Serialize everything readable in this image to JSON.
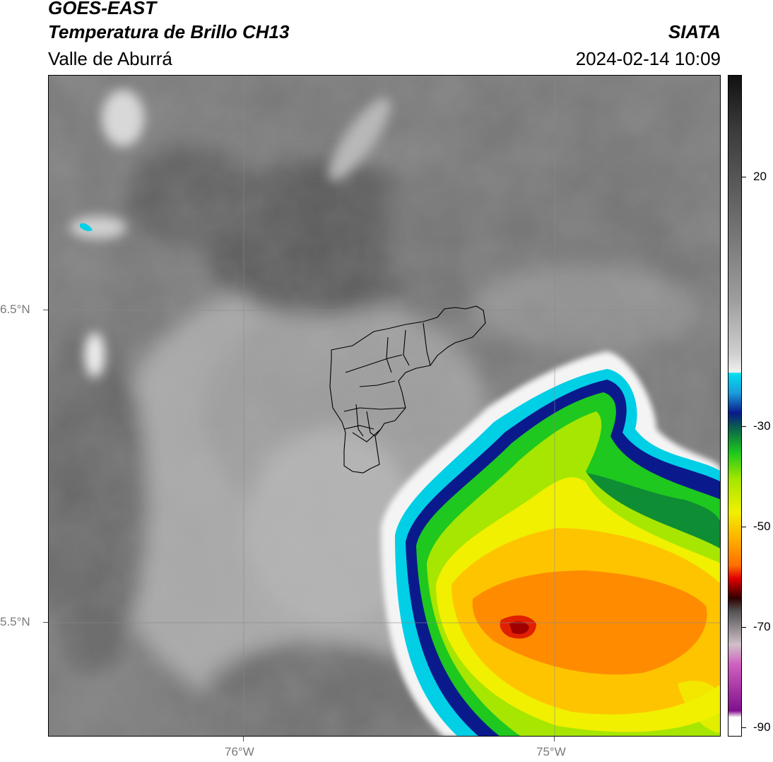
{
  "header": {
    "satellite": "GOES-EAST",
    "product": "Temperatura de Brillo CH13",
    "region": "Valle de Aburrá",
    "institution": "SIATA",
    "datetime": "2024-02-14 10:09"
  },
  "map": {
    "lat_ticks": [
      "6.5°N",
      "5.5°N"
    ],
    "lon_ticks": [
      "76°W",
      "75°W"
    ],
    "gridlines": true,
    "features": [
      "brightness-temperature-field",
      "convective-storm-cold-cloud-top",
      "aburra-valley-municipal-boundaries",
      "small-cold-spot-northwest"
    ]
  },
  "colorbar": {
    "labels": [
      "20",
      "-30",
      "-50",
      "-70",
      "-90"
    ],
    "colors": {
      "warm_gray_top": "#111111",
      "light_gray": "#f0f0f0",
      "cyan": "#00d8e8",
      "dark_blue": "#0a1a8c",
      "green": "#1ec81e",
      "yellow": "#f0f000",
      "orange": "#ff8c00",
      "red": "#e00000",
      "dark_red": "#300000",
      "magenta": "#d060c0",
      "purple": "#80108c",
      "white_bottom": "#ffffff"
    }
  }
}
